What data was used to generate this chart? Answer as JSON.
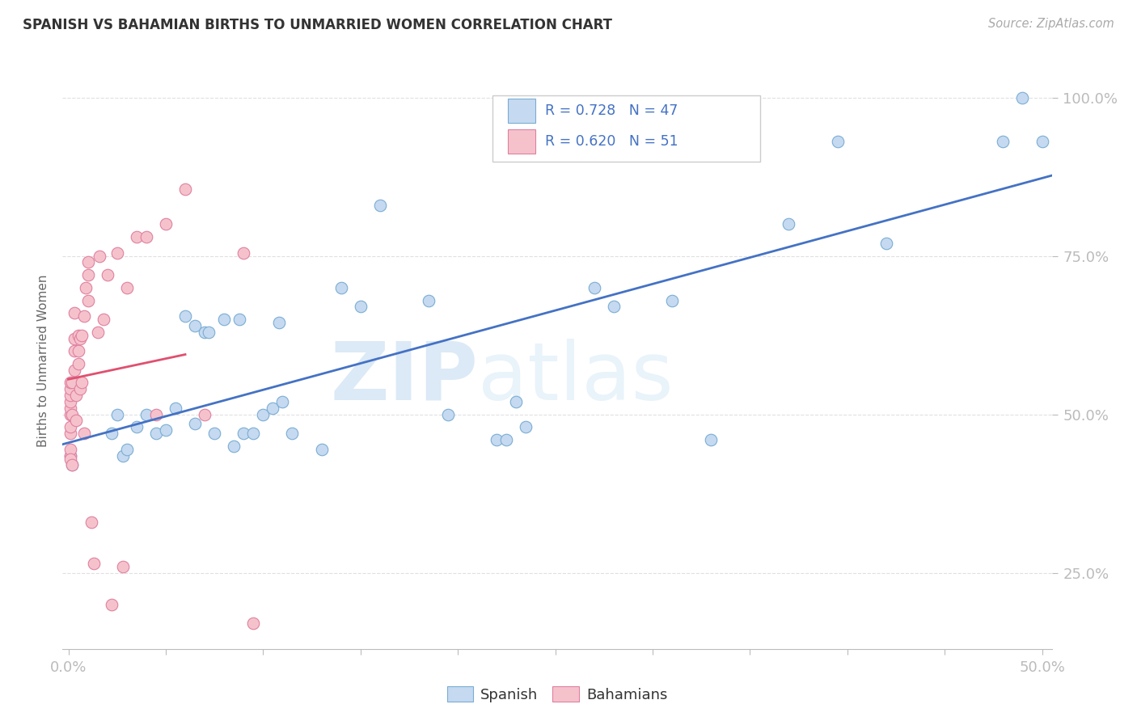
{
  "title": "SPANISH VS BAHAMIAN BIRTHS TO UNMARRIED WOMEN CORRELATION CHART",
  "source": "Source: ZipAtlas.com",
  "ylabel": "Births to Unmarried Women",
  "xlim": [
    -0.003,
    0.505
  ],
  "ylim": [
    0.13,
    1.04
  ],
  "xtick_positions": [
    0.0,
    0.05,
    0.1,
    0.15,
    0.2,
    0.25,
    0.3,
    0.35,
    0.4,
    0.45,
    0.5
  ],
  "ytick_positions": [
    0.25,
    0.5,
    0.75,
    1.0
  ],
  "yticklabels": [
    "25.0%",
    "50.0%",
    "75.0%",
    "100.0%"
  ],
  "legend_r_spanish": "R = 0.728",
  "legend_n_spanish": "N = 47",
  "legend_r_bahamian": "R = 0.620",
  "legend_n_bahamian": "N = 51",
  "color_spanish_fill": "#c5d9f0",
  "color_spanish_edge": "#7aadd4",
  "color_bahamian_fill": "#f5c2cc",
  "color_bahamian_edge": "#e080a0",
  "color_spanish_line": "#4472c4",
  "color_bahamian_line": "#e05070",
  "color_title": "#333333",
  "color_source": "#aaaaaa",
  "color_axis_labels": "#4472c4",
  "color_grid": "#e0e0e0",
  "color_watermark_zip": "#c8dff0",
  "color_watermark_atlas": "#d8e8f5",
  "spanish_x": [
    0.001,
    0.002,
    0.022,
    0.028,
    0.03,
    0.035,
    0.04,
    0.045,
    0.05,
    0.055,
    0.06,
    0.065,
    0.07,
    0.075,
    0.08,
    0.085,
    0.09,
    0.095,
    0.1,
    0.105,
    0.11,
    0.115,
    0.13,
    0.14,
    0.15,
    0.16,
    0.185,
    0.195,
    0.22,
    0.225,
    0.23,
    0.235,
    0.27,
    0.28,
    0.31,
    0.33,
    0.37,
    0.395,
    0.42,
    0.48,
    0.49,
    0.5,
    0.025,
    0.088,
    0.108,
    0.065,
    0.072
  ],
  "spanish_y": [
    0.435,
    0.42,
    0.47,
    0.435,
    0.445,
    0.48,
    0.5,
    0.47,
    0.475,
    0.51,
    0.655,
    0.64,
    0.63,
    0.47,
    0.65,
    0.45,
    0.47,
    0.47,
    0.5,
    0.51,
    0.52,
    0.47,
    0.445,
    0.7,
    0.67,
    0.83,
    0.68,
    0.5,
    0.46,
    0.46,
    0.52,
    0.48,
    0.7,
    0.67,
    0.68,
    0.46,
    0.8,
    0.93,
    0.77,
    0.93,
    1.0,
    0.93,
    0.5,
    0.65,
    0.645,
    0.485,
    0.63
  ],
  "bahamian_x": [
    0.001,
    0.001,
    0.001,
    0.001,
    0.001,
    0.001,
    0.001,
    0.001,
    0.001,
    0.001,
    0.001,
    0.002,
    0.002,
    0.002,
    0.003,
    0.003,
    0.003,
    0.003,
    0.004,
    0.004,
    0.005,
    0.005,
    0.005,
    0.006,
    0.006,
    0.007,
    0.007,
    0.008,
    0.008,
    0.009,
    0.01,
    0.01,
    0.01,
    0.012,
    0.013,
    0.015,
    0.016,
    0.018,
    0.02,
    0.022,
    0.025,
    0.028,
    0.03,
    0.035,
    0.04,
    0.045,
    0.05,
    0.06,
    0.07,
    0.09,
    0.095
  ],
  "bahamian_y": [
    0.435,
    0.445,
    0.47,
    0.48,
    0.5,
    0.51,
    0.52,
    0.53,
    0.54,
    0.55,
    0.43,
    0.5,
    0.55,
    0.42,
    0.57,
    0.6,
    0.62,
    0.66,
    0.49,
    0.53,
    0.58,
    0.6,
    0.625,
    0.54,
    0.62,
    0.55,
    0.625,
    0.655,
    0.47,
    0.7,
    0.68,
    0.72,
    0.74,
    0.33,
    0.265,
    0.63,
    0.75,
    0.65,
    0.72,
    0.2,
    0.755,
    0.26,
    0.7,
    0.78,
    0.78,
    0.5,
    0.8,
    0.855,
    0.5,
    0.755,
    0.17
  ],
  "watermark_text": "ZIPatlas"
}
